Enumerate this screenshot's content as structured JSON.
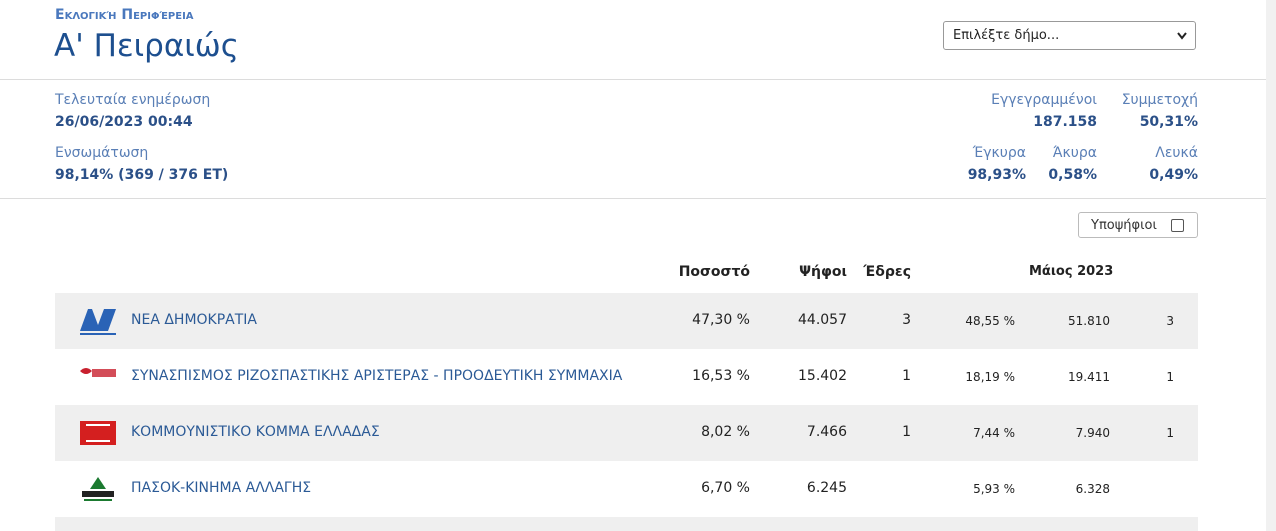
{
  "header": {
    "subtitle": "Εκλογική Περιφέρεια",
    "title": "Α' Πειραιώς",
    "select": "Επιλέξτε δήμο..."
  },
  "stats": {
    "left": [
      {
        "label": "Τελευταία ενημέρωση",
        "value": "26/06/2023 00:44"
      },
      {
        "label": "Ενσωμάτωση",
        "value": "98,14% (369 / 376 ΕΤ)"
      }
    ],
    "right_top": [
      {
        "label": "Εγγεγραμμένοι",
        "value": "187.158"
      },
      {
        "label": "Συμμετοχή",
        "value": "50,31%"
      }
    ],
    "right_bottom": [
      {
        "label": "Έγκυρα",
        "value": "98,93%"
      },
      {
        "label": "Άκυρα",
        "value": "0,58%"
      },
      {
        "label": "Λευκά",
        "value": "0,49%"
      }
    ]
  },
  "filter": "Υποψήφιοι",
  "table": {
    "columns": [
      "Ποσοστό",
      "Ψήφοι",
      "Έδρες"
    ],
    "previous": "Μάιος 2023",
    "rows": [
      {
        "name": "ΝΕΑ ΔΗΜΟΚΡΑΤΙΑ",
        "pct": "47,30 %",
        "votes": "44.057",
        "seats": "3",
        "prev_pct": "48,55 %",
        "prev_votes": "51.810",
        "prev_seats": "3"
      },
      {
        "name": "ΣΥΝΑΣΠΙΣΜΟΣ ΡΙΖΟΣΠΑΣΤΙΚΗΣ ΑΡΙΣΤΕΡΑΣ - ΠΡΟΟΔΕΥΤΙΚΗ ΣΥΜΜΑΧΙΑ",
        "pct": "16,53 %",
        "votes": "15.402",
        "seats": "1",
        "prev_pct": "18,19 %",
        "prev_votes": "19.411",
        "prev_seats": "1"
      },
      {
        "name": "ΚΟΜΜΟΥΝΙΣΤΙΚΟ ΚΟΜΜΑ ΕΛΛΑΔΑΣ",
        "pct": "8,02 %",
        "votes": "7.466",
        "seats": "1",
        "prev_pct": "7,44 %",
        "prev_votes": "7.940",
        "prev_seats": "1"
      },
      {
        "name": "ΠΑΣΟΚ-ΚΙΝΗΜΑ ΑΛΛΑΓΗΣ",
        "pct": "6,70 %",
        "votes": "6.245",
        "seats": null,
        "prev_pct": "5,93 %",
        "prev_votes": "6.328",
        "prev_seats": null
      }
    ]
  }
}
